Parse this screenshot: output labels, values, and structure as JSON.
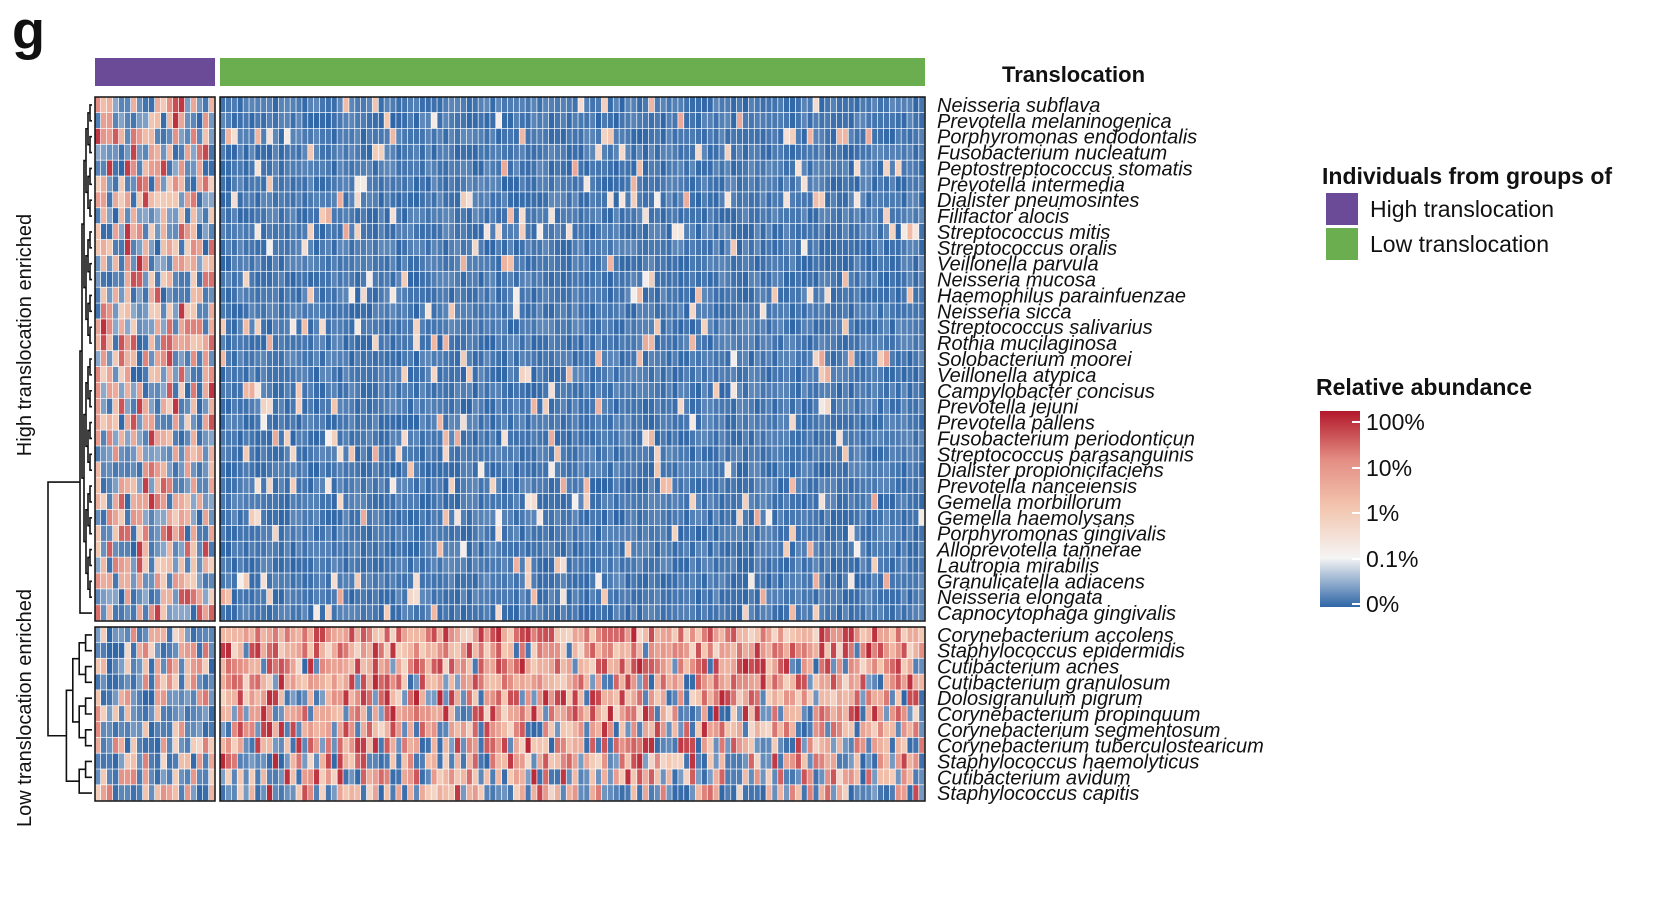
{
  "panel_label": "g",
  "colors": {
    "high_group": "#6B4A97",
    "low_group": "#6AAE4F",
    "scale": [
      "#2F66A7",
      "#F4F4F4",
      "#F3C7B1",
      "#E48E84",
      "#B2182B"
    ]
  },
  "chart_data": {
    "type": "heatmap",
    "title": "Translocation",
    "annotation_title": "Translocation",
    "groups": [
      {
        "name": "High translocation",
        "n_columns": 20,
        "color": "#6B4A97"
      },
      {
        "name": "Low translocation",
        "n_columns": 120,
        "color": "#6AAE4F"
      }
    ],
    "clusters": [
      {
        "label": "High translocation enriched",
        "species": [
          "Neisseria subflava",
          "Prevotella melaninogenica",
          "Porphyromonas endodontalis",
          "Fusobacterium nucleatum",
          "Peptostreptococcus stomatis",
          "Prevotella intermedia",
          "Dialister pneumosintes",
          "Filifactor alocis",
          "Streptococcus mitis",
          "Streptococcus oralis",
          "Veillonella parvula",
          "Neisseria mucosa",
          "Haemophilus parainfuenzae",
          "Neisseria sicca",
          "Streptococcus salivarius",
          "Rothia mucilaginosa",
          "Solobacterium moorei",
          "Veillonella atypica",
          "Campylobacter concisus",
          "Prevotella jejuni",
          "Prevotella pallens",
          "Fusobacterium periodonticun",
          "Streptococcus parasanguinis",
          "Dialister propionicifaciens",
          "Prevotella nanceiensis",
          "Gemella morbillorum",
          "Gemella haemolysans",
          "Porphyromonas gingivalis",
          "Alloprevotella tannerae",
          "Lautropia mirabilis",
          "Granulicatella adiacens",
          "Neisseria elongata",
          "Capnocytophaga gingivalis"
        ]
      },
      {
        "label": "Low translocation enriched",
        "species": [
          "Corynebacterium accolens",
          "Staphylococcus epidermidis",
          "Cutibacterium acnes",
          "Cutibacterium granulosum",
          "Dolosigranulum pigrum",
          "Corynebacterium propinquum",
          "Corynebacterium segmentosum",
          "Corynebacterium tuberculostearicum",
          "Staphylococcus haemolyticus",
          "Cutibacterium avidum",
          "Staphylococcus capitis"
        ]
      }
    ],
    "value_scale": {
      "label": "Relative abundance",
      "ticks": [
        "100%",
        "10%",
        "1%",
        "0.1%",
        "0%"
      ]
    },
    "legend": {
      "title": "Individuals from groups of",
      "entries": [
        {
          "label": "High translocation",
          "color": "#6B4A97"
        },
        {
          "label": "Low translocation",
          "color": "#6AAE4F"
        }
      ]
    }
  }
}
